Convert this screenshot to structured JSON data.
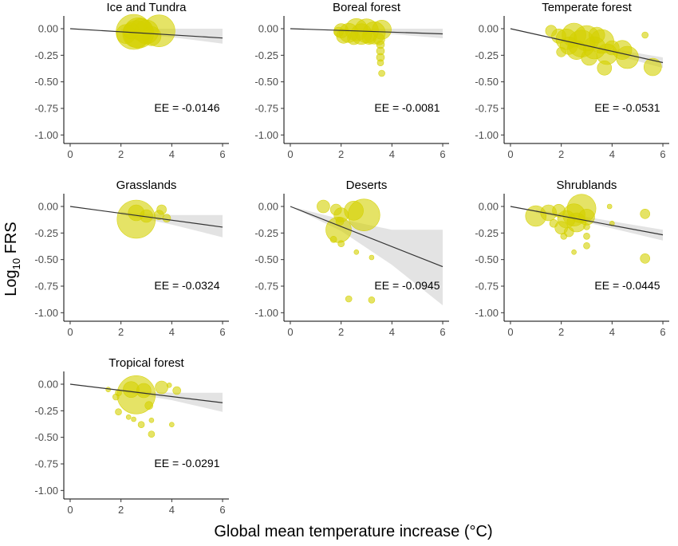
{
  "figure": {
    "ylabel_main": "Log",
    "ylabel_sub": "10",
    "ylabel_rest": " FRS",
    "xlabel": "Global mean temperature increase (°C)",
    "point_color": "#d4d000",
    "line_color": "#333333",
    "ribbon_color": "#d9d9d9"
  },
  "chart_data": [
    {
      "type": "scatter",
      "title": "Ice and Tundra",
      "annotation": "EE = -0.0146",
      "slope": -0.0146,
      "xlim": [
        0,
        6
      ],
      "ylim": [
        -1.0,
        0.0
      ],
      "xticks": [
        "0",
        "2",
        "4",
        "6"
      ],
      "yticks": [
        "0.00",
        "-0.25",
        "-0.50",
        "-0.75",
        "-1.00"
      ],
      "ribbon": {
        "x": [
          2.0,
          4.0,
          6.0
        ],
        "upper": [
          0.0,
          0.0,
          0.0
        ],
        "lower": [
          -0.04,
          -0.08,
          -0.14
        ]
      },
      "points": [
        {
          "x": 2.5,
          "y": -0.03,
          "s": 22
        },
        {
          "x": 2.7,
          "y": -0.04,
          "s": 19
        },
        {
          "x": 3.5,
          "y": -0.02,
          "s": 20
        },
        {
          "x": 2.6,
          "y": -0.05,
          "s": 17
        },
        {
          "x": 3.0,
          "y": -0.03,
          "s": 15
        },
        {
          "x": 2.2,
          "y": -0.05,
          "s": 12
        },
        {
          "x": 3.2,
          "y": -0.07,
          "s": 12
        },
        {
          "x": 2.8,
          "y": -0.01,
          "s": 14
        },
        {
          "x": 2.4,
          "y": -0.02,
          "s": 10
        }
      ]
    },
    {
      "type": "scatter",
      "title": "Boreal forest",
      "annotation": "EE = -0.0081",
      "slope": -0.0081,
      "xlim": [
        0,
        6
      ],
      "ylim": [
        -1.0,
        0.0
      ],
      "xticks": [
        "0",
        "2",
        "4",
        "6"
      ],
      "yticks": [
        "0.00",
        "-0.25",
        "-0.50",
        "-0.75",
        "-1.00"
      ],
      "ribbon": {
        "x": [
          2.0,
          4.0,
          6.0
        ],
        "upper": [
          0.0,
          0.0,
          0.0
        ],
        "lower": [
          -0.03,
          -0.05,
          -0.09
        ]
      },
      "points": [
        {
          "x": 2.0,
          "y": -0.02,
          "s": 9
        },
        {
          "x": 2.3,
          "y": -0.04,
          "s": 12
        },
        {
          "x": 2.6,
          "y": -0.01,
          "s": 14
        },
        {
          "x": 2.8,
          "y": -0.05,
          "s": 13
        },
        {
          "x": 3.0,
          "y": -0.02,
          "s": 15
        },
        {
          "x": 3.3,
          "y": -0.04,
          "s": 14
        },
        {
          "x": 3.6,
          "y": -0.01,
          "s": 12
        },
        {
          "x": 2.1,
          "y": -0.07,
          "s": 9
        },
        {
          "x": 2.5,
          "y": -0.09,
          "s": 8
        },
        {
          "x": 3.1,
          "y": -0.08,
          "s": 9
        },
        {
          "x": 3.5,
          "y": -0.1,
          "s": 7
        },
        {
          "x": 1.9,
          "y": -0.03,
          "s": 6
        },
        {
          "x": 3.55,
          "y": -0.15,
          "s": 5
        },
        {
          "x": 3.55,
          "y": -0.21,
          "s": 5
        },
        {
          "x": 3.55,
          "y": -0.27,
          "s": 5
        },
        {
          "x": 3.55,
          "y": -0.32,
          "s": 4
        },
        {
          "x": 3.6,
          "y": -0.42,
          "s": 4
        }
      ]
    },
    {
      "type": "scatter",
      "title": "Temperate forest",
      "annotation": "EE = -0.0531",
      "slope": -0.0531,
      "xlim": [
        0,
        6
      ],
      "ylim": [
        -1.0,
        0.0
      ],
      "xticks": [
        "0",
        "2",
        "4",
        "6"
      ],
      "yticks": [
        "0.00",
        "-0.25",
        "-0.50",
        "-0.75",
        "-1.00"
      ],
      "ribbon": {
        "x": [
          2.0,
          4.0,
          6.0
        ],
        "upper": [
          -0.09,
          -0.19,
          -0.27
        ],
        "lower": [
          -0.13,
          -0.24,
          -0.37
        ]
      },
      "points": [
        {
          "x": 1.6,
          "y": -0.02,
          "s": 7
        },
        {
          "x": 1.9,
          "y": -0.07,
          "s": 9
        },
        {
          "x": 2.2,
          "y": -0.1,
          "s": 13
        },
        {
          "x": 2.5,
          "y": -0.06,
          "s": 15
        },
        {
          "x": 2.8,
          "y": -0.14,
          "s": 17
        },
        {
          "x": 3.0,
          "y": -0.09,
          "s": 16
        },
        {
          "x": 3.3,
          "y": -0.18,
          "s": 14
        },
        {
          "x": 3.6,
          "y": -0.12,
          "s": 15
        },
        {
          "x": 3.8,
          "y": -0.24,
          "s": 13
        },
        {
          "x": 2.6,
          "y": -0.2,
          "s": 12
        },
        {
          "x": 2.3,
          "y": -0.16,
          "s": 11
        },
        {
          "x": 3.4,
          "y": -0.06,
          "s": 10
        },
        {
          "x": 4.0,
          "y": -0.18,
          "s": 9
        },
        {
          "x": 4.4,
          "y": -0.2,
          "s": 12
        },
        {
          "x": 4.6,
          "y": -0.27,
          "s": 14
        },
        {
          "x": 5.6,
          "y": -0.36,
          "s": 11
        },
        {
          "x": 5.3,
          "y": -0.06,
          "s": 4
        },
        {
          "x": 3.7,
          "y": -0.37,
          "s": 9
        },
        {
          "x": 2.0,
          "y": -0.22,
          "s": 6
        },
        {
          "x": 3.1,
          "y": -0.27,
          "s": 10
        }
      ]
    },
    {
      "type": "scatter",
      "title": "Grasslands",
      "annotation": "EE = -0.0324",
      "slope": -0.0324,
      "xlim": [
        0,
        6
      ],
      "ylim": [
        -1.0,
        0.0
      ],
      "xticks": [
        "0",
        "2",
        "4",
        "6"
      ],
      "yticks": [
        "0.00",
        "-0.25",
        "-0.50",
        "-0.75",
        "-1.00"
      ],
      "ribbon": {
        "x": [
          2.0,
          3.0,
          4.0,
          6.0
        ],
        "upper": [
          -0.05,
          -0.07,
          -0.08,
          -0.08
        ],
        "lower": [
          -0.08,
          -0.12,
          -0.17,
          -0.29
        ]
      },
      "points": [
        {
          "x": 2.6,
          "y": -0.12,
          "s": 24
        },
        {
          "x": 2.6,
          "y": -0.06,
          "s": 10
        },
        {
          "x": 3.0,
          "y": -0.09,
          "s": 8
        },
        {
          "x": 3.5,
          "y": -0.08,
          "s": 6
        },
        {
          "x": 3.6,
          "y": -0.03,
          "s": 6
        },
        {
          "x": 3.8,
          "y": -0.11,
          "s": 5
        }
      ]
    },
    {
      "type": "scatter",
      "title": "Deserts",
      "annotation": "EE = -0.0945",
      "slope": -0.0945,
      "xlim": [
        0,
        6
      ],
      "ylim": [
        -1.0,
        0.0
      ],
      "xticks": [
        "0",
        "2",
        "4",
        "6"
      ],
      "yticks": [
        "0.00",
        "-0.25",
        "-0.50",
        "-0.75",
        "-1.00"
      ],
      "ribbon": {
        "x": [
          0.0,
          2.0,
          4.0,
          6.0
        ],
        "upper": [
          0.0,
          -0.12,
          -0.22,
          -0.22
        ],
        "lower": [
          0.0,
          -0.23,
          -0.55,
          -0.93
        ]
      },
      "points": [
        {
          "x": 1.3,
          "y": 0.0,
          "s": 8
        },
        {
          "x": 1.8,
          "y": -0.03,
          "s": 7
        },
        {
          "x": 2.0,
          "y": -0.08,
          "s": 9
        },
        {
          "x": 2.5,
          "y": -0.04,
          "s": 12
        },
        {
          "x": 2.9,
          "y": -0.08,
          "s": 20
        },
        {
          "x": 1.9,
          "y": -0.22,
          "s": 16
        },
        {
          "x": 1.7,
          "y": -0.31,
          "s": 4
        },
        {
          "x": 2.0,
          "y": -0.35,
          "s": 4
        },
        {
          "x": 2.6,
          "y": -0.43,
          "s": 3
        },
        {
          "x": 3.2,
          "y": -0.48,
          "s": 3
        },
        {
          "x": 2.3,
          "y": -0.87,
          "s": 4
        },
        {
          "x": 3.2,
          "y": -0.88,
          "s": 4
        },
        {
          "x": 1.95,
          "y": -0.14,
          "s": 5
        }
      ]
    },
    {
      "type": "scatter",
      "title": "Shrublands",
      "annotation": "EE = -0.0445",
      "slope": -0.0445,
      "xlim": [
        0,
        6
      ],
      "ylim": [
        -1.0,
        0.0
      ],
      "xticks": [
        "0",
        "2",
        "4",
        "6"
      ],
      "yticks": [
        "0.00",
        "-0.25",
        "-0.50",
        "-0.75",
        "-1.00"
      ],
      "ribbon": {
        "x": [
          1.0,
          3.0,
          6.0
        ],
        "upper": [
          -0.03,
          -0.1,
          -0.22
        ],
        "lower": [
          -0.06,
          -0.15,
          -0.32
        ]
      },
      "points": [
        {
          "x": 1.0,
          "y": -0.09,
          "s": 13
        },
        {
          "x": 1.5,
          "y": -0.06,
          "s": 10
        },
        {
          "x": 1.9,
          "y": -0.04,
          "s": 8
        },
        {
          "x": 2.2,
          "y": -0.12,
          "s": 11
        },
        {
          "x": 2.5,
          "y": -0.08,
          "s": 14
        },
        {
          "x": 2.8,
          "y": -0.02,
          "s": 18
        },
        {
          "x": 2.6,
          "y": -0.15,
          "s": 12
        },
        {
          "x": 3.0,
          "y": -0.1,
          "s": 10
        },
        {
          "x": 2.0,
          "y": -0.2,
          "s": 8
        },
        {
          "x": 2.3,
          "y": -0.24,
          "s": 6
        },
        {
          "x": 2.1,
          "y": -0.28,
          "s": 4
        },
        {
          "x": 3.0,
          "y": -0.28,
          "s": 4
        },
        {
          "x": 3.0,
          "y": -0.37,
          "s": 4
        },
        {
          "x": 2.5,
          "y": -0.43,
          "s": 3
        },
        {
          "x": 3.0,
          "y": -0.19,
          "s": 4
        },
        {
          "x": 3.9,
          "y": 0.0,
          "s": 3
        },
        {
          "x": 4.0,
          "y": -0.16,
          "s": 3
        },
        {
          "x": 5.3,
          "y": -0.07,
          "s": 6
        },
        {
          "x": 5.3,
          "y": -0.49,
          "s": 6
        },
        {
          "x": 1.7,
          "y": -0.16,
          "s": 5
        }
      ]
    },
    {
      "type": "scatter",
      "title": "Tropical forest",
      "annotation": "EE = -0.0291",
      "slope": -0.0291,
      "xlim": [
        0,
        6
      ],
      "ylim": [
        -1.0,
        0.0
      ],
      "xticks": [
        "0",
        "2",
        "4",
        "6"
      ],
      "yticks": [
        "0.00",
        "-0.25",
        "-0.50",
        "-0.75",
        "-1.00"
      ],
      "ribbon": {
        "x": [
          2.0,
          3.0,
          4.0,
          6.0
        ],
        "upper": [
          -0.05,
          -0.07,
          -0.08,
          -0.08
        ],
        "lower": [
          -0.07,
          -0.11,
          -0.15,
          -0.26
        ]
      },
      "points": [
        {
          "x": 2.6,
          "y": -0.1,
          "s": 24
        },
        {
          "x": 2.4,
          "y": -0.05,
          "s": 10
        },
        {
          "x": 2.9,
          "y": -0.06,
          "s": 9
        },
        {
          "x": 3.6,
          "y": -0.03,
          "s": 8
        },
        {
          "x": 4.2,
          "y": -0.06,
          "s": 5
        },
        {
          "x": 3.9,
          "y": -0.01,
          "s": 3
        },
        {
          "x": 1.5,
          "y": -0.05,
          "s": 3
        },
        {
          "x": 1.8,
          "y": -0.12,
          "s": 4
        },
        {
          "x": 1.9,
          "y": -0.08,
          "s": 4
        },
        {
          "x": 1.9,
          "y": -0.26,
          "s": 4
        },
        {
          "x": 2.3,
          "y": -0.31,
          "s": 3
        },
        {
          "x": 2.5,
          "y": -0.33,
          "s": 3
        },
        {
          "x": 2.8,
          "y": -0.38,
          "s": 4
        },
        {
          "x": 3.2,
          "y": -0.47,
          "s": 4
        },
        {
          "x": 3.2,
          "y": -0.34,
          "s": 3
        },
        {
          "x": 4.0,
          "y": -0.38,
          "s": 3
        },
        {
          "x": 3.1,
          "y": -0.2,
          "s": 5
        }
      ]
    }
  ]
}
